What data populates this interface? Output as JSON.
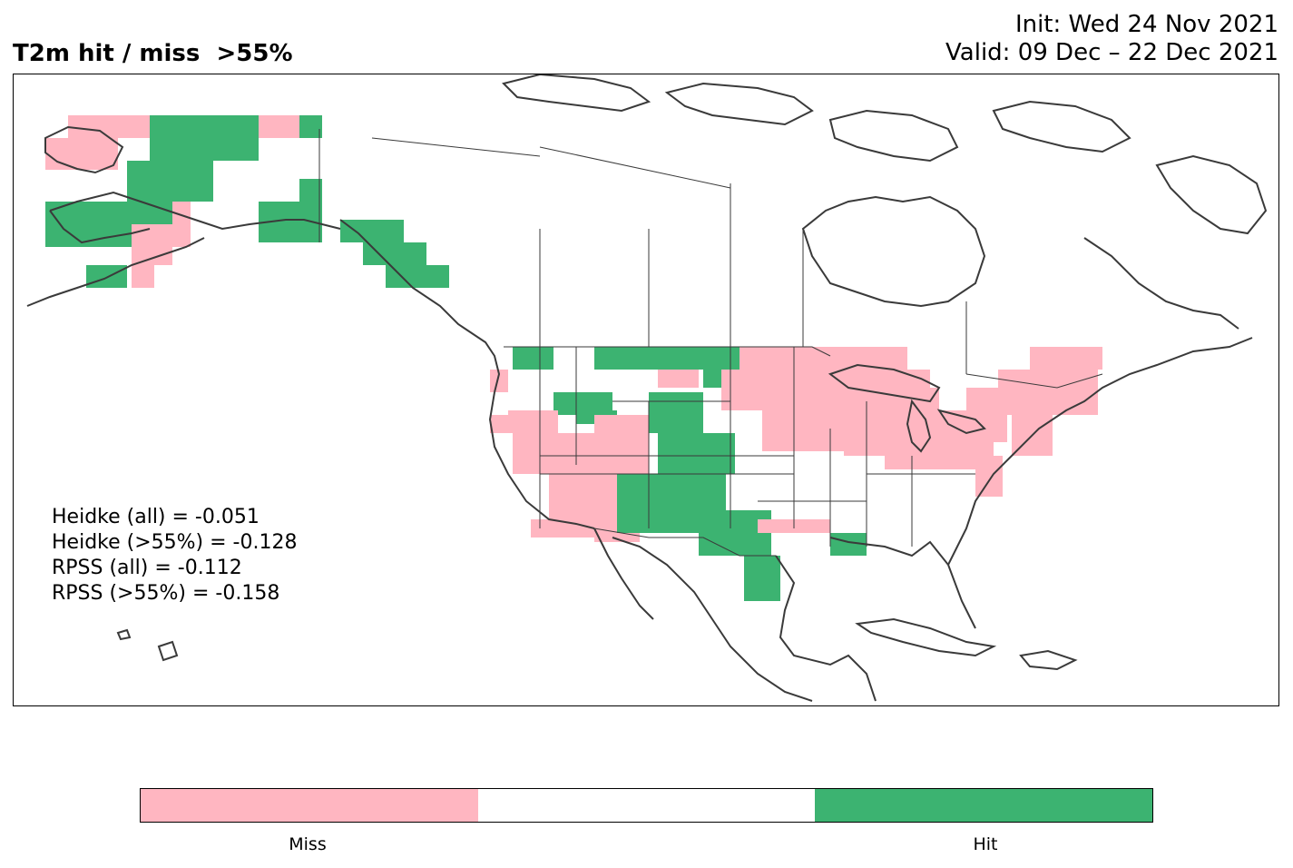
{
  "title": "T2m hit / miss  >55%",
  "init": "Init: Wed 24 Nov 2021",
  "valid": "Valid: 09 Dec – 22 Dec 2021",
  "colors": {
    "miss": "#ffb6c1",
    "neutral": "#ffffff",
    "hit": "#3cb371",
    "border": "#3a3a3a"
  },
  "scores": [
    "Heidke (all) = -0.051",
    "Heidke (>55%) = -0.128",
    "RPSS (all) = -0.112",
    "RPSS (>55%) = -0.158"
  ],
  "colorbar": {
    "categories": [
      "Miss",
      "",
      "Hit"
    ],
    "labels": {
      "miss": "Miss",
      "hit": "Hit"
    }
  }
}
